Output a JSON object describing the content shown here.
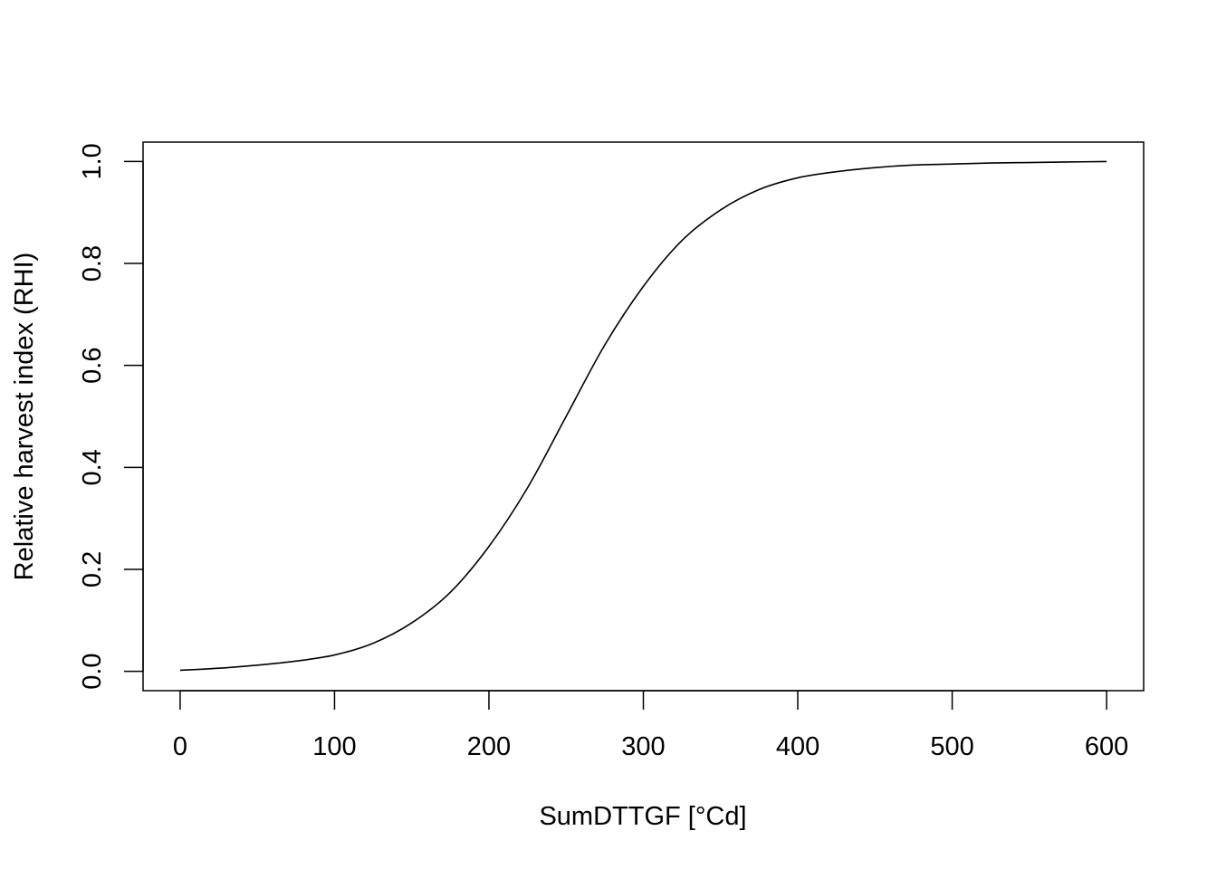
{
  "chart_data": {
    "type": "line",
    "title": "",
    "xlabel": "SumDTTGF [°Cd]",
    "ylabel": "Relative harvest index (RHI)",
    "xlim": [
      -24,
      624
    ],
    "ylim": [
      -0.038,
      1.038
    ],
    "x_ticks": [
      0,
      100,
      200,
      300,
      400,
      500,
      600
    ],
    "y_ticks": [
      0.0,
      0.2,
      0.4,
      0.6,
      0.8,
      1.0
    ],
    "x_tick_labels": [
      "0",
      "100",
      "200",
      "300",
      "400",
      "500",
      "600"
    ],
    "y_tick_labels": [
      "0.0",
      "0.2",
      "0.4",
      "0.6",
      "0.8",
      "1.0"
    ],
    "grid": false,
    "legend": "none",
    "line_color": "#000000",
    "series": [
      {
        "x": [
          0,
          25,
          50,
          75,
          100,
          125,
          150,
          175,
          200,
          225,
          250,
          275,
          300,
          325,
          350,
          375,
          400,
          425,
          450,
          475,
          500,
          525,
          550,
          575,
          600
        ],
        "values": [
          0.002,
          0.006,
          0.012,
          0.02,
          0.032,
          0.055,
          0.095,
          0.155,
          0.245,
          0.36,
          0.5,
          0.64,
          0.755,
          0.845,
          0.905,
          0.945,
          0.968,
          0.98,
          0.988,
          0.993,
          0.995,
          0.997,
          0.998,
          0.999,
          1.0
        ]
      }
    ]
  }
}
